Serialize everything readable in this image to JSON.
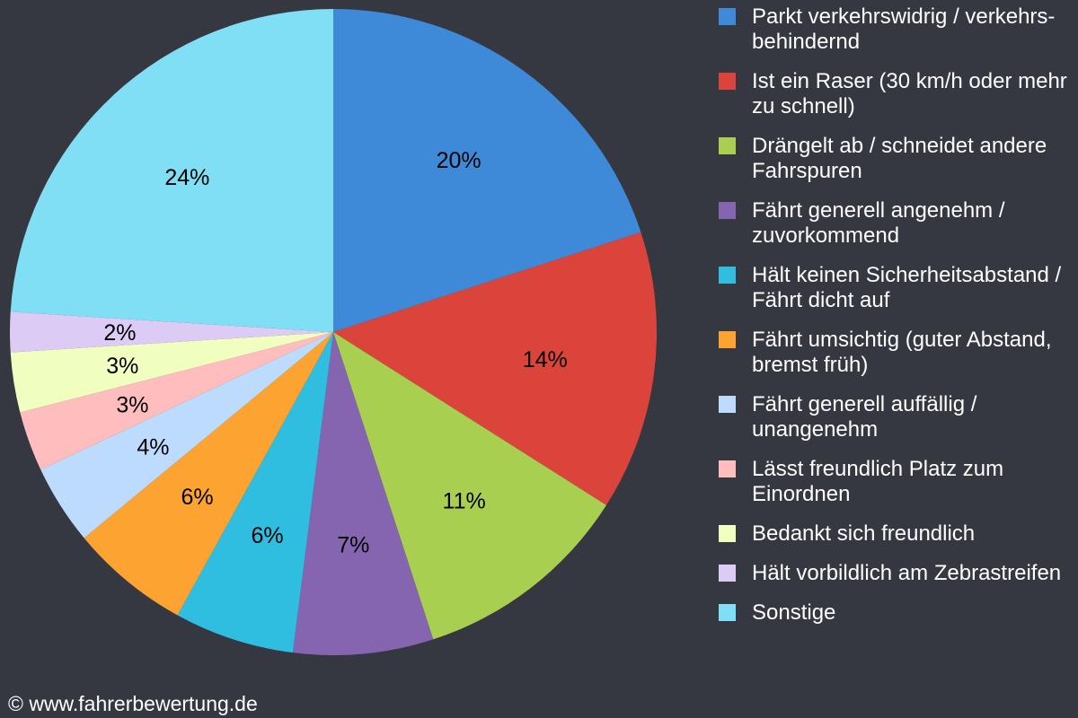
{
  "chart_data": {
    "type": "pie",
    "start_angle": "12 o'clock",
    "direction": "clockwise",
    "legend_position": "right",
    "slices": [
      {
        "label": "Parkt verkehrswidrig / verkehrs-behindernd",
        "value": 20,
        "data_label": "20%",
        "color": "#3e8ad8"
      },
      {
        "label": "Ist ein Raser (30 km/h oder mehr zu schnell)",
        "value": 14,
        "data_label": "14%",
        "color": "#db443a"
      },
      {
        "label": "Drängelt ab / schneidet andere Fahrspuren",
        "value": 11,
        "data_label": "11%",
        "color": "#a8cf4f"
      },
      {
        "label": "Fährt generell angenehm / zuvorkommend",
        "value": 7,
        "data_label": "7%",
        "color": "#8665b0"
      },
      {
        "label": "Hält keinen Sicherheitsabstand / Fährt dicht auf",
        "value": 6,
        "data_label": "6%",
        "color": "#2fbde0"
      },
      {
        "label": "Fährt umsichtig (guter Abstand, bremst früh)",
        "value": 6,
        "data_label": "6%",
        "color": "#fda332"
      },
      {
        "label": "Fährt generell auffällig / unangenehm",
        "value": 4,
        "data_label": "4%",
        "color": "#bddcfd"
      },
      {
        "label": "Lässt freundlich Platz zum Einordnen",
        "value": 3,
        "data_label": "3%",
        "color": "#ffbdbd"
      },
      {
        "label": "Bedankt sich freundlich",
        "value": 3,
        "data_label": "3%",
        "color": "#f0ffc0"
      },
      {
        "label": "Hält vorbildlich am Zebrastreifen",
        "value": 2,
        "data_label": "2%",
        "color": "#dccbf5"
      },
      {
        "label": "Sonstige",
        "value": 24,
        "data_label": "24%",
        "color": "#80dff5"
      }
    ]
  },
  "footer": "© www.fahrerbewertung.de"
}
